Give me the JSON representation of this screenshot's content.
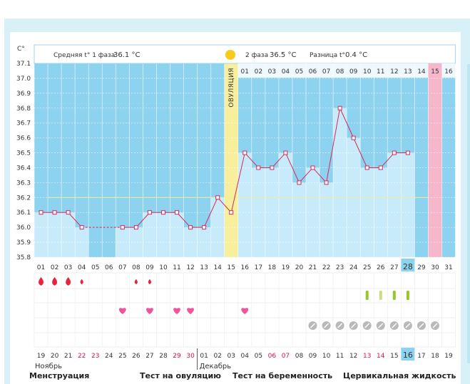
{
  "chart_data": {
    "type": "line",
    "unit_label": "C°",
    "yticks": [
      "37.1",
      "37.0",
      "36.9",
      "36.8",
      "36.7",
      "36.6",
      "36.5",
      "36.4",
      "36.3",
      "36.2",
      "36.1",
      "36.0",
      "35.9",
      "35.8"
    ],
    "ylim": [
      35.8,
      37.1
    ],
    "phase1_label": "Средняя t° 1 фаза",
    "phase1_value": "36.1 °C",
    "phase2_label": "2 фаза",
    "phase2_value": "36.5 °C",
    "diff_label": "Разница t°",
    "diff_value": "0.4 °C",
    "ovulation_label": "ОВУЛЯЦИЯ",
    "ovulation_index": 14,
    "coverline": 36.2,
    "phase2_days": [
      "01",
      "02",
      "03",
      "04",
      "05",
      "06",
      "07",
      "08",
      "09",
      "10",
      "11",
      "12",
      "13",
      "14",
      "15",
      "16"
    ],
    "phase2_highlight_index": 14,
    "cycle_days": [
      "01",
      "02",
      "03",
      "04",
      "05",
      "06",
      "07",
      "08",
      "09",
      "10",
      "11",
      "12",
      "13",
      "14",
      "15",
      "16",
      "17",
      "18",
      "19",
      "20",
      "21",
      "22",
      "23",
      "24",
      "25",
      "26",
      "27",
      "28",
      "29",
      "30",
      "31"
    ],
    "today_index": 27,
    "highlight_day_index": 29,
    "temperatures": [
      36.1,
      36.1,
      36.1,
      36.0,
      null,
      null,
      36.0,
      36.0,
      36.1,
      36.1,
      36.1,
      36.0,
      36.0,
      36.2,
      36.1,
      36.5,
      36.4,
      36.4,
      36.5,
      36.3,
      36.4,
      36.3,
      36.8,
      36.6,
      36.4,
      36.4,
      36.5,
      36.5,
      null,
      null,
      null
    ],
    "menstruation": [
      3,
      3,
      3,
      1,
      0,
      0,
      0,
      1,
      1,
      0,
      0,
      0,
      0,
      0,
      0,
      0,
      0,
      0,
      0,
      0,
      0,
      0,
      0,
      0,
      0,
      0,
      0,
      0,
      0,
      0,
      0
    ],
    "hearts": [
      7,
      9,
      11,
      12,
      16
    ],
    "mucus_days": [
      25,
      26,
      27,
      28
    ],
    "pregnancy_test_days": [
      21,
      22,
      23,
      24,
      25,
      26,
      27,
      28,
      29,
      30
    ],
    "dates": [
      "19",
      "20",
      "21",
      "22",
      "23",
      "24",
      "25",
      "26",
      "27",
      "28",
      "29",
      "30",
      "01",
      "02",
      "03",
      "04",
      "05",
      "06",
      "07",
      "08",
      "09",
      "10",
      "11",
      "12",
      "13",
      "14",
      "15",
      "16",
      "17",
      "18",
      "19"
    ],
    "red_dates": [
      3,
      4,
      10,
      11,
      17,
      18,
      24,
      25
    ],
    "today_date_index": 27,
    "month_labels": [
      "Ноябрь",
      "Декабрь"
    ],
    "month_break_index": 12
  },
  "legend": {
    "menstruation": "Менструация",
    "ovulation_test": "Тест на овуляцию",
    "pregnancy_test": "Тест на беременность",
    "cervical_fluid": "Цервикальная жидкость"
  },
  "colors": {
    "sky": "#8dd2ef",
    "bar": "#c7ebfa",
    "line": "#d42a5a",
    "ovulation": "#f7ef9c",
    "highlight": "#f6b6cc",
    "today": "#8dd2ef",
    "drop": "#e8243c",
    "heart": "#f0559a",
    "mucus": "#9ac42b",
    "test": "#b9b9b9",
    "red_text": "#d8144a"
  }
}
